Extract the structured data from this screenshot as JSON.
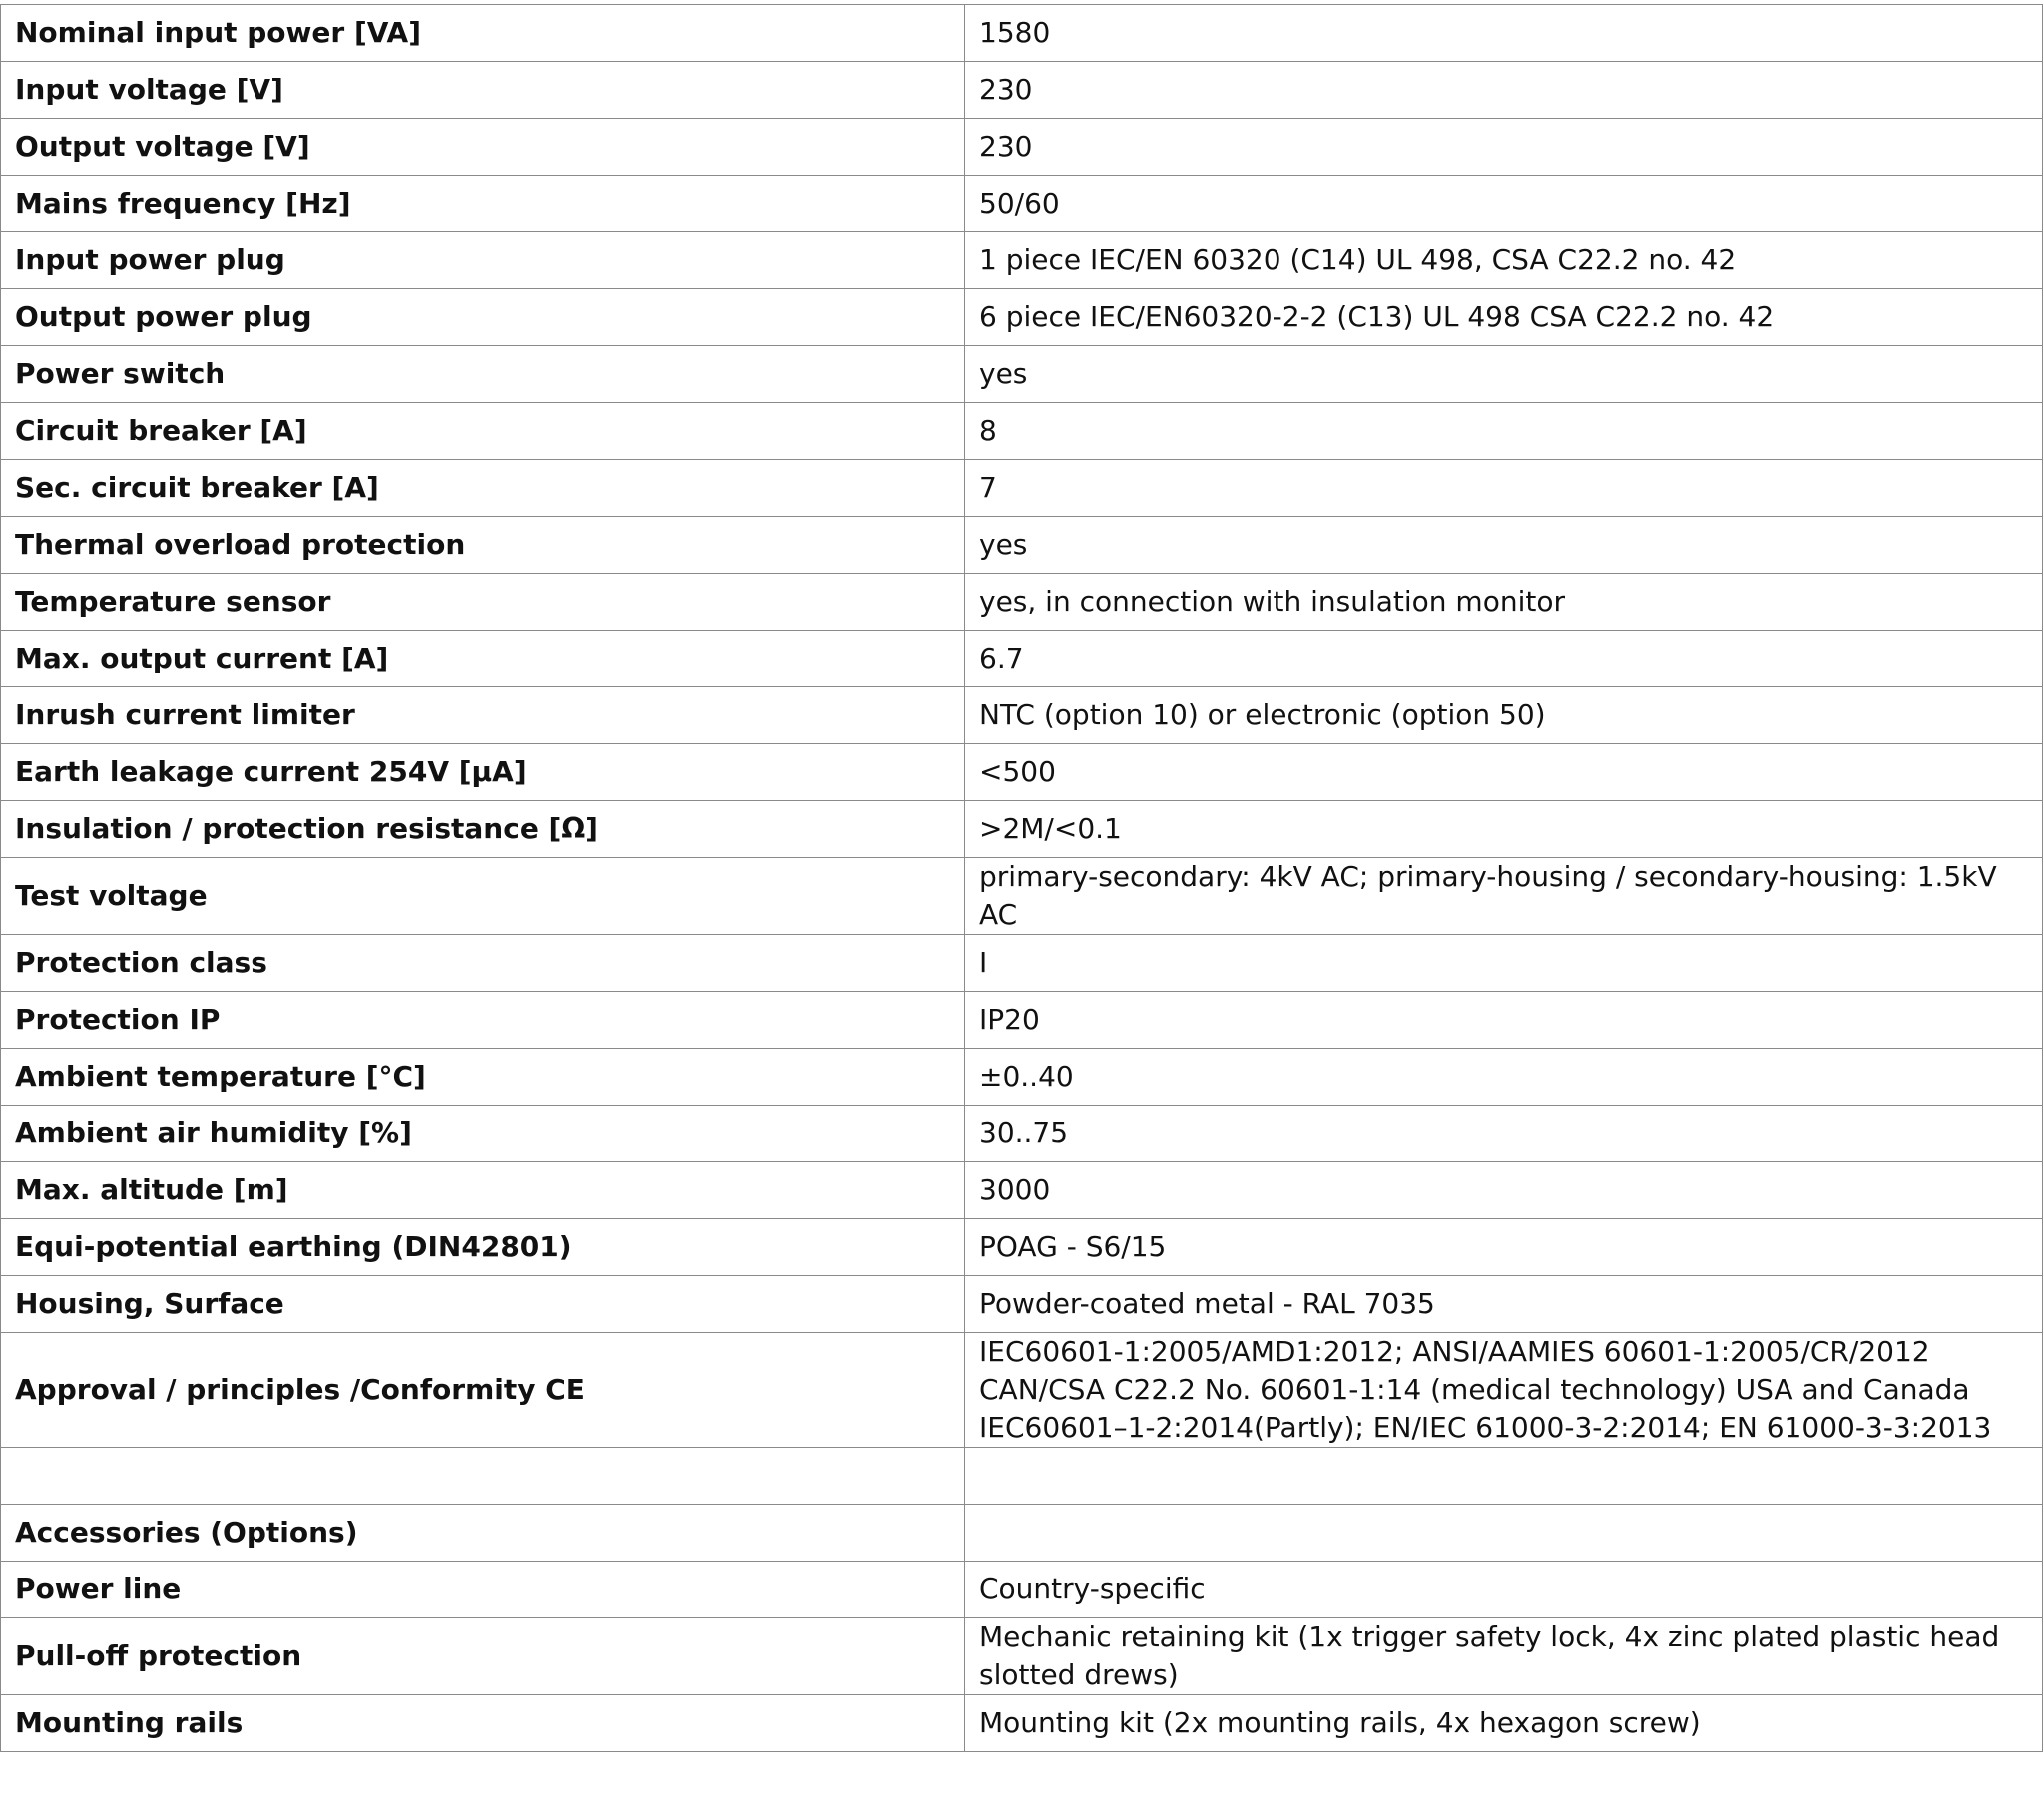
{
  "rows": [
    {
      "label": "Nominal input power [VA]",
      "value": [
        "1580"
      ]
    },
    {
      "label": "Input voltage [V]",
      "value": [
        "230"
      ]
    },
    {
      "label": "Output voltage [V]",
      "value": [
        "230"
      ]
    },
    {
      "label": "Mains frequency [Hz]",
      "value": [
        "50/60"
      ]
    },
    {
      "label": "Input power plug",
      "value": [
        "1 piece IEC/EN 60320 (C14) UL 498, CSA C22.2 no. 42"
      ]
    },
    {
      "label": "Output power plug",
      "value": [
        "6 piece IEC/EN60320-2-2 (C13) UL 498 CSA C22.2 no. 42"
      ]
    },
    {
      "label": "Power switch",
      "value": [
        "yes"
      ]
    },
    {
      "label": "Circuit breaker [A]",
      "value": [
        "8"
      ]
    },
    {
      "label": "Sec. circuit breaker [A]",
      "value": [
        "7"
      ]
    },
    {
      "label": "Thermal overload protection",
      "value": [
        "yes"
      ]
    },
    {
      "label": "Temperature sensor",
      "value": [
        "yes, in connection with insulation monitor"
      ]
    },
    {
      "label": "Max. output current [A]",
      "value": [
        "6.7"
      ]
    },
    {
      "label": "Inrush current limiter",
      "value": [
        "NTC (option 10) or electronic (option 50)"
      ]
    },
    {
      "label": "Earth leakage current 254V [µA]",
      "value": [
        "<500"
      ]
    },
    {
      "label": "Insulation / protection resistance [Ω]",
      "value": [
        ">2M/<0.1"
      ]
    },
    {
      "label": "Test voltage",
      "value": [
        "primary-secondary: 4kV AC; primary-housing / secondary-housing: 1.5kV AC"
      ]
    },
    {
      "label": "Protection class",
      "value": [
        "I"
      ]
    },
    {
      "label": "Protection IP",
      "value": [
        "IP20"
      ]
    },
    {
      "label": "Ambient temperature [°C]",
      "value": [
        "±0..40"
      ]
    },
    {
      "label": "Ambient air humidity [%]",
      "value": [
        "30..75"
      ]
    },
    {
      "label": "Max. altitude [m]",
      "value": [
        "3000"
      ]
    },
    {
      "label": "Equi-potential earthing (DIN42801)",
      "value": [
        "POAG - S6/15"
      ]
    },
    {
      "label": "Housing, Surface",
      "value": [
        "Powder-coated metal - RAL 7035"
      ]
    },
    {
      "label": "Approval / principles /Conformity CE",
      "value": [
        "IEC60601-1:2005/AMD1:2012; ANSI/AAMIES 60601-1:2005/CR/2012",
        "CAN/CSA C22.2 No. 60601-1:14 (medical technology) USA and Canada",
        "IEC60601–1-2:2014(Partly); EN/IEC 61000-3-2:2014; EN 61000-3-3:2013"
      ],
      "align": "top"
    },
    {
      "label": "",
      "value": [
        ""
      ]
    },
    {
      "label": "Accessories (Options)",
      "value": [
        ""
      ]
    },
    {
      "label": "Power line",
      "value": [
        "Country-specific"
      ]
    },
    {
      "label": "Pull-off protection",
      "value": [
        "Mechanic retaining kit (1x trigger safety lock, 4x zinc plated plastic head",
        "slotted drews)"
      ]
    },
    {
      "label": "Mounting rails",
      "value": [
        "Mounting kit (2x mounting rails, 4x hexagon screw)"
      ]
    }
  ]
}
